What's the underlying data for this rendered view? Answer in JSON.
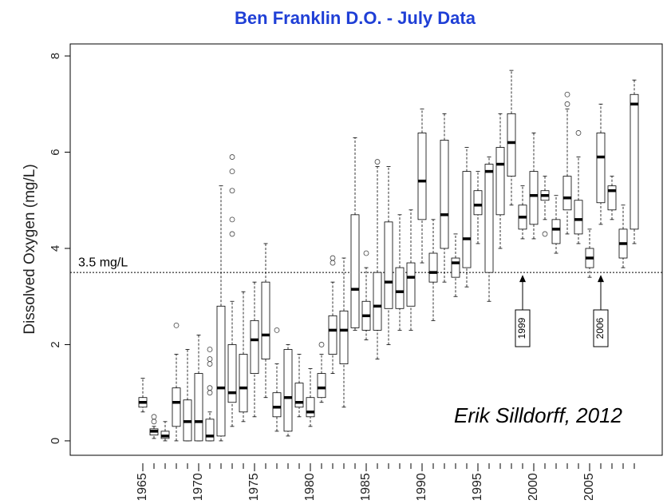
{
  "chart_data": {
    "type": "box",
    "title": "Ben Franklin D.O.  -  July Data",
    "y_label": "Dissolved Oxygen  (mg/L)",
    "credit": "Erik Silldorff, 2012",
    "x": [
      1965,
      1966,
      1967,
      1968,
      1969,
      1970,
      1971,
      1972,
      1973,
      1974,
      1975,
      1976,
      1977,
      1978,
      1979,
      1980,
      1981,
      1982,
      1983,
      1984,
      1985,
      1986,
      1987,
      1988,
      1989,
      1990,
      1991,
      1992,
      1993,
      1994,
      1995,
      1996,
      1997,
      1998,
      1999,
      2000,
      2001,
      2002,
      2003,
      2004,
      2005,
      2006,
      2007,
      2008,
      2009
    ],
    "min": [
      0.6,
      0.05,
      0.0,
      0.0,
      0.0,
      0.0,
      0.0,
      0.0,
      0.3,
      0.4,
      0.5,
      0.9,
      0.2,
      0.1,
      0.5,
      0.3,
      0.8,
      1.4,
      0.7,
      2.3,
      2.1,
      1.7,
      2.0,
      2.3,
      2.3,
      3.7,
      2.5,
      3.3,
      3.0,
      3.2,
      4.1,
      2.9,
      4.0,
      4.9,
      4.2,
      4.2,
      4.6,
      3.9,
      4.3,
      4.1,
      3.4,
      4.5,
      4.6,
      3.6,
      4.1
    ],
    "q1": [
      0.7,
      0.12,
      0.05,
      0.3,
      0.0,
      0.0,
      0.0,
      0.1,
      0.8,
      0.6,
      1.4,
      1.7,
      0.5,
      0.2,
      0.7,
      0.5,
      0.9,
      1.8,
      1.6,
      2.35,
      2.3,
      2.3,
      2.75,
      2.75,
      2.8,
      4.6,
      3.3,
      4.0,
      3.4,
      3.6,
      4.7,
      3.5,
      4.7,
      5.5,
      4.4,
      4.5,
      5.0,
      4.1,
      4.8,
      4.3,
      3.6,
      4.95,
      4.8,
      3.8,
      4.4
    ],
    "median": [
      0.8,
      0.2,
      0.1,
      0.8,
      0.4,
      0.4,
      0.1,
      1.1,
      1.0,
      1.1,
      2.1,
      2.2,
      0.7,
      0.9,
      0.8,
      0.6,
      1.1,
      2.3,
      2.3,
      3.15,
      2.6,
      2.8,
      3.3,
      3.1,
      3.4,
      5.4,
      3.5,
      4.7,
      3.7,
      4.2,
      4.9,
      5.6,
      5.75,
      6.2,
      4.65,
      5.1,
      5.1,
      4.4,
      5.05,
      4.6,
      3.8,
      5.9,
      5.2,
      4.1,
      7.0
    ],
    "q3": [
      0.9,
      0.25,
      0.2,
      1.1,
      0.85,
      1.4,
      0.45,
      2.8,
      2.0,
      1.8,
      2.5,
      3.3,
      1.0,
      1.9,
      1.2,
      0.9,
      1.4,
      2.6,
      2.7,
      4.7,
      2.9,
      3.5,
      4.55,
      3.6,
      3.7,
      6.4,
      3.9,
      6.25,
      3.8,
      5.6,
      5.2,
      5.75,
      6.1,
      6.8,
      4.9,
      5.6,
      5.2,
      4.6,
      5.5,
      5.0,
      4.0,
      6.4,
      5.3,
      4.4,
      7.2
    ],
    "max": [
      1.3,
      0.3,
      0.4,
      1.8,
      1.9,
      2.2,
      0.6,
      5.3,
      2.9,
      3.1,
      3.3,
      4.1,
      1.6,
      2.0,
      1.8,
      1.5,
      1.8,
      3.3,
      3.8,
      6.3,
      3.6,
      5.7,
      5.7,
      4.7,
      4.8,
      6.9,
      4.6,
      6.8,
      4.3,
      6.1,
      5.6,
      5.9,
      6.8,
      7.7,
      5.3,
      6.4,
      5.5,
      5.1,
      6.9,
      5.9,
      4.4,
      7.0,
      5.5,
      4.9,
      7.5
    ],
    "outliers": [
      [],
      [
        0.4,
        0.5
      ],
      [],
      [
        2.4
      ],
      [],
      [],
      [
        1.0,
        1.1,
        1.6,
        1.7,
        1.9
      ],
      [],
      [
        4.3,
        4.6,
        5.2,
        5.6,
        5.9
      ],
      [],
      [],
      [],
      [
        2.3
      ],
      [],
      [],
      [],
      [
        2.0
      ],
      [
        3.7,
        3.8
      ],
      [],
      [],
      [
        3.9
      ],
      [
        5.8
      ],
      [],
      [],
      [],
      [],
      [],
      [],
      [],
      [],
      [],
      [],
      [],
      [],
      [],
      [],
      [
        4.3
      ],
      [],
      [
        7.0,
        7.2
      ],
      [
        6.4
      ],
      [],
      [],
      [],
      [],
      []
    ],
    "box_color": "#000000",
    "xlim": [
      1958.5,
      2011.5
    ],
    "xticks": [
      1965,
      1970,
      1975,
      1980,
      1985,
      1990,
      1995,
      2000,
      2005
    ],
    "ylim": [
      -0.3,
      8.25
    ],
    "yticks": [
      0,
      2,
      4,
      6,
      8
    ],
    "reference_line": {
      "value": 3.5,
      "label": "3.5 mg/L"
    },
    "arrows": [
      {
        "x": 1999,
        "label": "1999"
      },
      {
        "x": 2006,
        "label": "2006"
      }
    ]
  }
}
